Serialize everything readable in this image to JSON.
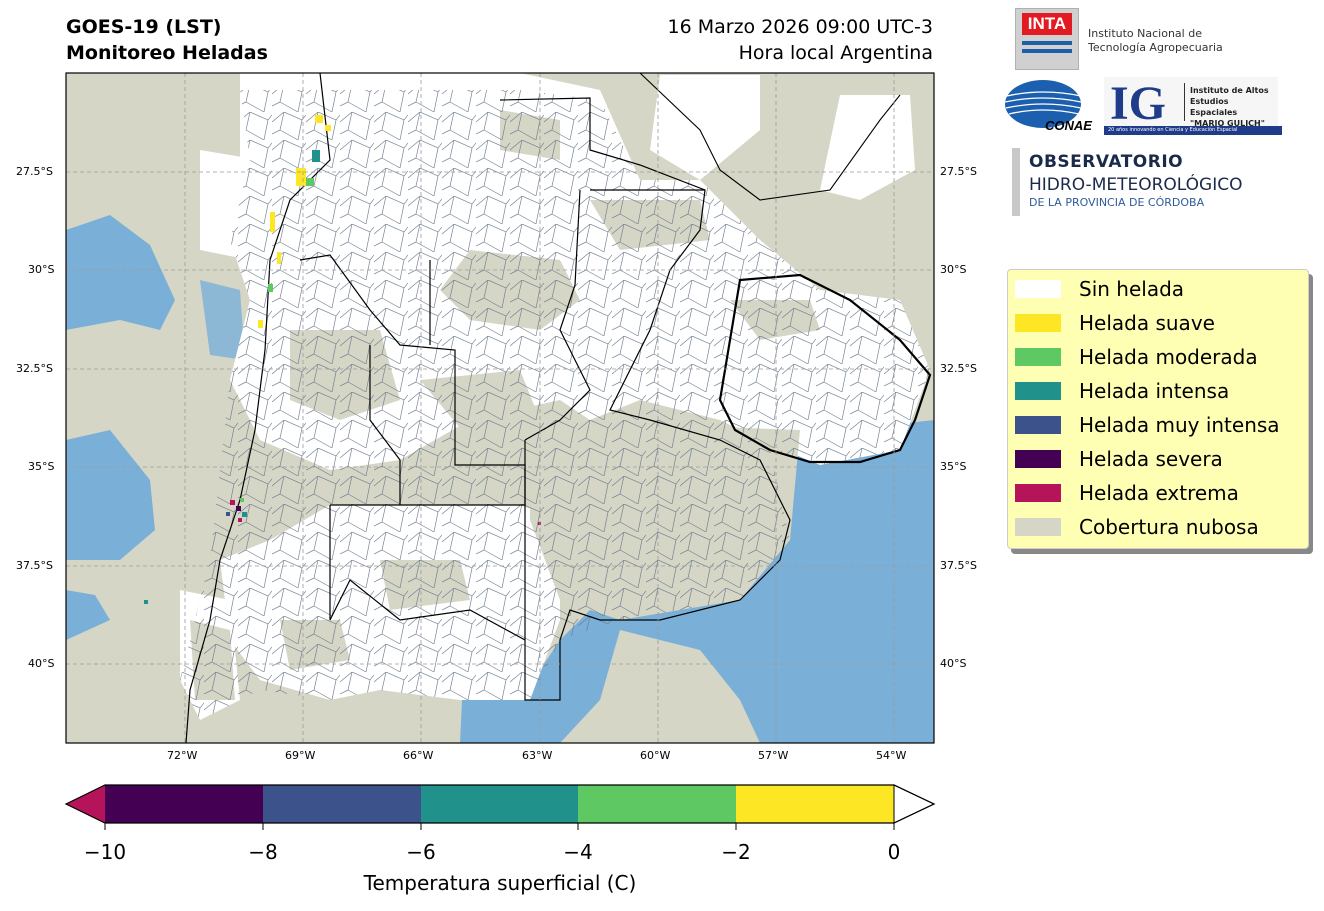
{
  "header": {
    "title_line1": "GOES-19 (LST)",
    "title_line2": "Monitoreo Heladas",
    "date_line": "16 Marzo 2026 09:00 UTC-3",
    "time_zone_line": "Hora local Argentina"
  },
  "map": {
    "lat_labels": [
      "27.5°S",
      "30°S",
      "32.5°S",
      "35°S",
      "37.5°S",
      "40°S"
    ],
    "lon_labels": [
      "72°W",
      "69°W",
      "66°W",
      "63°W",
      "60°W",
      "57°W",
      "54°W"
    ],
    "colors": {
      "cloud": "#d6d6c6",
      "ocean": "#7ab0d8",
      "land_clear": "#ffffff",
      "borders": "#000000",
      "departments": "#6a7a8c"
    }
  },
  "legend": {
    "items": [
      {
        "label": "Sin helada",
        "color": "#ffffff"
      },
      {
        "label": "Helada suave",
        "color": "#fde725"
      },
      {
        "label": "Helada moderada",
        "color": "#5ec962"
      },
      {
        "label": "Helada intensa",
        "color": "#21918c"
      },
      {
        "label": "Helada muy intensa",
        "color": "#3b528b"
      },
      {
        "label": "Helada severa",
        "color": "#440154"
      },
      {
        "label": "Helada extrema",
        "color": "#b5145a"
      },
      {
        "label": "Cobertura nubosa",
        "color": "#d6d6c6"
      }
    ]
  },
  "colorbar": {
    "ticks": [
      "−10",
      "−8",
      "−6",
      "−4",
      "−2",
      "0"
    ],
    "label": "Temperatura superficial (C)",
    "segments": [
      "#440154",
      "#3b528b",
      "#21918c",
      "#5ec962",
      "#fde725"
    ],
    "under_color": "#b5145a",
    "over_color": "#ffffff"
  },
  "logos": {
    "inta_mark": "INTA",
    "inta_name_line1": "Instituto Nacional de",
    "inta_name_line2": "Tecnología Agropecuaria",
    "conae": "CONAE",
    "ig_mark": "IG",
    "ig_line1": "Instituto de Altos",
    "ig_line2": "Estudios Espaciales",
    "ig_line3": "\"MARIO GULICH\"",
    "ig_tagline": "20 años innovando en Ciencia y Educación Espacial",
    "obs_line1": "OBSERVATORIO",
    "obs_line2": "HIDRO-METEOROLÓGICO",
    "obs_line3": "DE LA PROVINCIA DE CÓRDOBA"
  }
}
